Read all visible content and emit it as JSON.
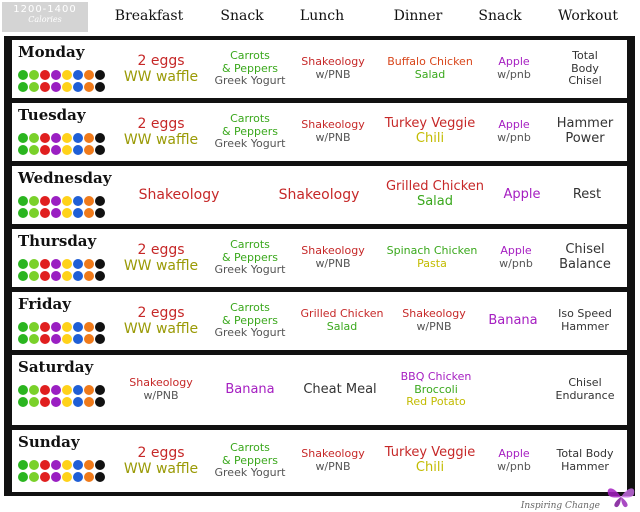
{
  "header": {
    "calories_range": "1200-1400",
    "calories_label": "Calories",
    "columns": [
      "Breakfast",
      "Snack",
      "Lunch",
      "Dinner",
      "Snack",
      "Workout"
    ]
  },
  "dot_colors": [
    "#2ab51f",
    "#7ad12a",
    "#e01f1f",
    "#9a1fc2",
    "#ffd21a",
    "#1f5fd6",
    "#f07a1a",
    "#111111"
  ],
  "rows": {
    "monday": {
      "day": "Monday",
      "breakfast": [
        "2 eggs",
        "WW waffle"
      ],
      "snack1": [
        "Carrots",
        "& Peppers",
        "Greek Yogurt"
      ],
      "lunch": [
        "Shakeology",
        "w/PNB"
      ],
      "dinner": [
        "Buffalo Chicken",
        "Salad"
      ],
      "snack2": [
        "Apple",
        "w/pnb"
      ],
      "workout": [
        "Total",
        "Body",
        "Chisel"
      ]
    },
    "tuesday": {
      "day": "Tuesday",
      "breakfast": [
        "2 eggs",
        "WW waffle"
      ],
      "snack1": [
        "Carrots",
        "& Peppers",
        "Greek Yogurt"
      ],
      "lunch": [
        "Shakeology",
        "w/PNB"
      ],
      "dinner": [
        "Turkey Veggie",
        "Chili"
      ],
      "snack2": [
        "Apple",
        "w/pnb"
      ],
      "workout": [
        "Hammer",
        "Power"
      ]
    },
    "wednesday": {
      "day": "Wednesday",
      "breakfast": "Shakeology",
      "lunch": "Shakeology",
      "dinner": [
        "Grilled Chicken",
        "Salad"
      ],
      "snack2": "Apple",
      "workout": "Rest"
    },
    "thursday": {
      "day": "Thursday",
      "breakfast": [
        "2 eggs",
        "WW waffle"
      ],
      "snack1": [
        "Carrots",
        "& Peppers",
        "Greek Yogurt"
      ],
      "lunch": [
        "Shakeology",
        "w/PNB"
      ],
      "dinner": [
        "Spinach Chicken",
        "Pasta"
      ],
      "snack2": [
        "Apple",
        "w/pnb"
      ],
      "workout": [
        "Chisel",
        "Balance"
      ]
    },
    "friday": {
      "day": "Friday",
      "breakfast": [
        "2 eggs",
        "WW waffle"
      ],
      "snack1": [
        "Carrots",
        "& Peppers",
        "Greek Yogurt"
      ],
      "lunch": [
        "Grilled Chicken",
        "Salad"
      ],
      "dinner": [
        "Shakeology",
        "w/PNB"
      ],
      "snack2": "Banana",
      "workout": [
        "Iso Speed",
        "Hammer"
      ]
    },
    "saturday": {
      "day": "Saturday",
      "breakfast": [
        "Shakeology",
        "w/PNB"
      ],
      "snack1": "Banana",
      "lunch": "Cheat Meal",
      "dinner": [
        "BBQ Chicken",
        "Broccoli",
        "Red Potato"
      ],
      "workout": [
        "Chisel",
        "Endurance"
      ]
    },
    "sunday": {
      "day": "Sunday",
      "breakfast": [
        "2 eggs",
        "WW waffle"
      ],
      "snack1": [
        "Carrots",
        "& Peppers",
        "Greek Yogurt"
      ],
      "lunch": [
        "Shakeology",
        "w/PNB"
      ],
      "dinner": [
        "Turkey Veggie",
        "Chili"
      ],
      "snack2": [
        "Apple",
        "w/pnb"
      ],
      "workout": [
        "Total Body",
        "Hammer"
      ]
    }
  },
  "footer": {
    "logo_text": "Inspiring Change"
  }
}
